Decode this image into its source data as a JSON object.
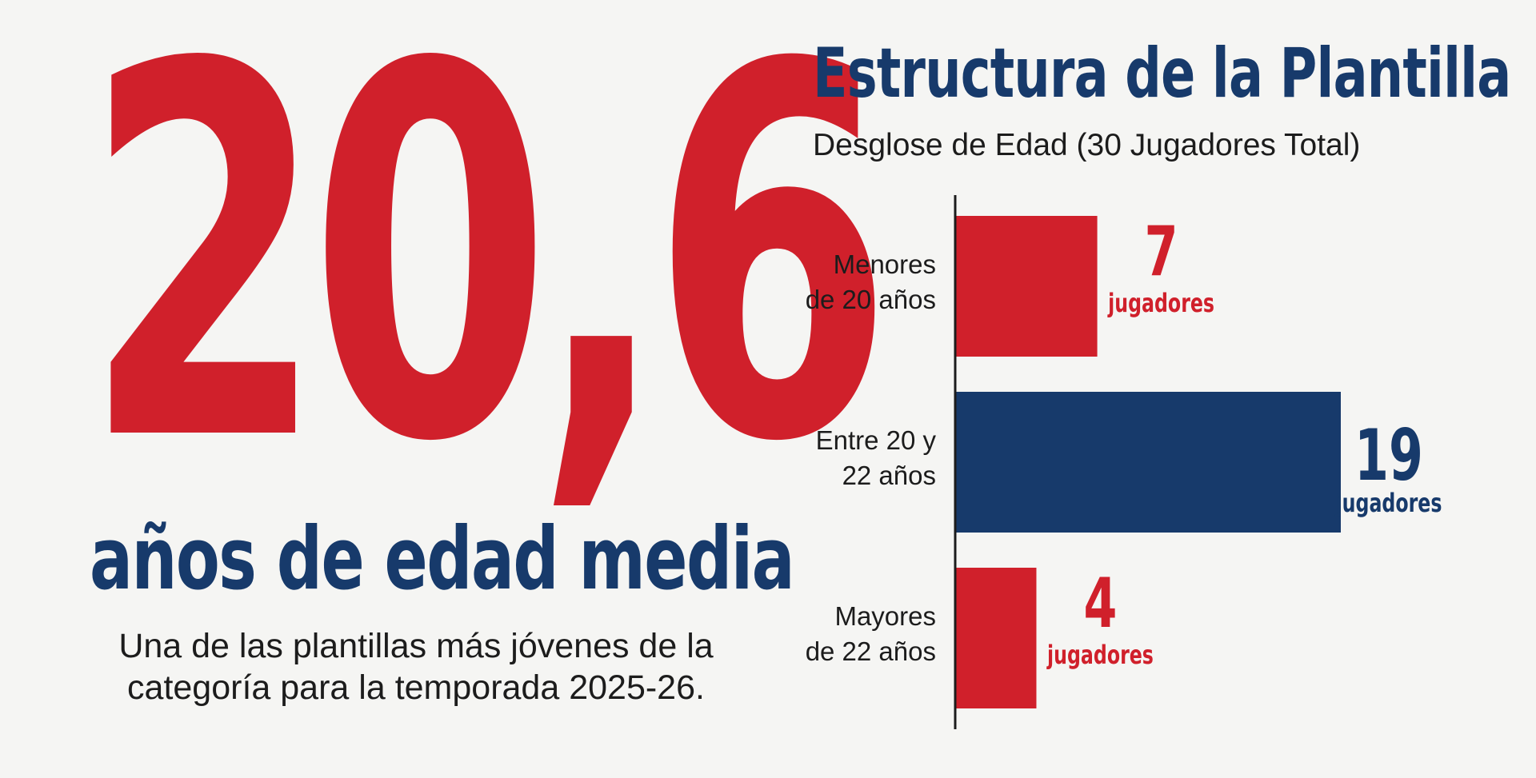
{
  "headline": {
    "value": "20,6",
    "label": "años de edad media",
    "description_line1": "Una de las plantillas más jóvenes de la",
    "description_line2": "categoría para la temporada 2025-26."
  },
  "colors": {
    "red": "#d0202b",
    "navy": "#173a6b",
    "background": "#f5f5f3",
    "text": "#1c1c1c"
  },
  "chart_data": {
    "type": "bar",
    "orientation": "horizontal",
    "title": "Estructura de la Plantilla",
    "subtitle": "Desglose de Edad (30 Jugadores Total)",
    "categories": [
      [
        "Menores",
        "de 20 años"
      ],
      [
        "Entre 20 y",
        "22 años"
      ],
      [
        "Mayores",
        "de 22 años"
      ]
    ],
    "values": [
      7,
      19,
      4
    ],
    "value_unit": "jugadores",
    "bar_colors": [
      "#d0202b",
      "#173a6b",
      "#d0202b"
    ],
    "xlim": [
      0,
      19
    ],
    "grid": false,
    "legend": "none"
  }
}
